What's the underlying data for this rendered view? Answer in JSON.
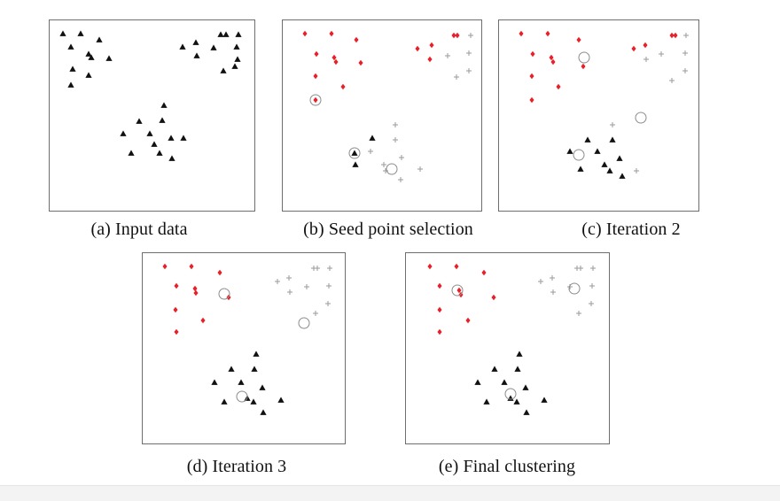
{
  "colors": {
    "cluster_red": "#e8202a",
    "cluster_black": "#111111",
    "cluster_gray": "#9a9a9a",
    "frame": "#6e6e6e"
  },
  "panels": [
    {
      "key": "a",
      "caption": "(a) Input data",
      "points": [
        {
          "m": "tri",
          "c": "k",
          "x": 15,
          "y": 15
        },
        {
          "m": "tri",
          "c": "k",
          "x": 35,
          "y": 15
        },
        {
          "m": "tri",
          "c": "k",
          "x": 56,
          "y": 22
        },
        {
          "m": "tri",
          "c": "k",
          "x": 24,
          "y": 30
        },
        {
          "m": "tri",
          "c": "k",
          "x": 44,
          "y": 38
        },
        {
          "m": "tri",
          "c": "k",
          "x": 47,
          "y": 42
        },
        {
          "m": "tri",
          "c": "k",
          "x": 67,
          "y": 43
        },
        {
          "m": "tri",
          "c": "k",
          "x": 26,
          "y": 55
        },
        {
          "m": "tri",
          "c": "k",
          "x": 44,
          "y": 62
        },
        {
          "m": "tri",
          "c": "k",
          "x": 24,
          "y": 73
        },
        {
          "m": "tri",
          "c": "k",
          "x": 150,
          "y": 30
        },
        {
          "m": "tri",
          "c": "k",
          "x": 165,
          "y": 25
        },
        {
          "m": "tri",
          "c": "k",
          "x": 193,
          "y": 16
        },
        {
          "m": "tri",
          "c": "k",
          "x": 199,
          "y": 16
        },
        {
          "m": "tri",
          "c": "k",
          "x": 185,
          "y": 31
        },
        {
          "m": "tri",
          "c": "k",
          "x": 213,
          "y": 16
        },
        {
          "m": "tri",
          "c": "k",
          "x": 166,
          "y": 40
        },
        {
          "m": "tri",
          "c": "k",
          "x": 211,
          "y": 30
        },
        {
          "m": "tri",
          "c": "k",
          "x": 212,
          "y": 44
        },
        {
          "m": "tri",
          "c": "k",
          "x": 209,
          "y": 52
        },
        {
          "m": "tri",
          "c": "k",
          "x": 196,
          "y": 57
        },
        {
          "m": "tri",
          "c": "k",
          "x": 129,
          "y": 96
        },
        {
          "m": "tri",
          "c": "k",
          "x": 101,
          "y": 114
        },
        {
          "m": "tri",
          "c": "k",
          "x": 127,
          "y": 113
        },
        {
          "m": "tri",
          "c": "k",
          "x": 83,
          "y": 128
        },
        {
          "m": "tri",
          "c": "k",
          "x": 113,
          "y": 128
        },
        {
          "m": "tri",
          "c": "k",
          "x": 137,
          "y": 133
        },
        {
          "m": "tri",
          "c": "k",
          "x": 151,
          "y": 133
        },
        {
          "m": "tri",
          "c": "k",
          "x": 92,
          "y": 150
        },
        {
          "m": "tri",
          "c": "k",
          "x": 118,
          "y": 140
        },
        {
          "m": "tri",
          "c": "k",
          "x": 124,
          "y": 150
        },
        {
          "m": "tri",
          "c": "k",
          "x": 138,
          "y": 156
        }
      ],
      "seeds": []
    },
    {
      "key": "b",
      "caption": "(b) Seed point selection",
      "points": [
        {
          "m": "dia",
          "c": "r",
          "x": 25,
          "y": 15
        },
        {
          "m": "dia",
          "c": "r",
          "x": 55,
          "y": 15
        },
        {
          "m": "dia",
          "c": "r",
          "x": 83,
          "y": 22
        },
        {
          "m": "dia",
          "c": "r",
          "x": 38,
          "y": 38
        },
        {
          "m": "dia",
          "c": "r",
          "x": 58,
          "y": 42
        },
        {
          "m": "dia",
          "c": "r",
          "x": 60,
          "y": 47
        },
        {
          "m": "dia",
          "c": "r",
          "x": 88,
          "y": 48
        },
        {
          "m": "dia",
          "c": "r",
          "x": 37,
          "y": 63
        },
        {
          "m": "dia",
          "c": "r",
          "x": 68,
          "y": 75
        },
        {
          "m": "dia",
          "c": "r",
          "x": 37,
          "y": 90
        },
        {
          "m": "dia",
          "c": "r",
          "x": 152,
          "y": 32
        },
        {
          "m": "dia",
          "c": "r",
          "x": 168,
          "y": 28
        },
        {
          "m": "dia",
          "c": "r",
          "x": 193,
          "y": 17
        },
        {
          "m": "dia",
          "c": "r",
          "x": 197,
          "y": 17
        },
        {
          "m": "dia",
          "c": "r",
          "x": 166,
          "y": 44
        },
        {
          "m": "plus",
          "c": "g",
          "x": 212,
          "y": 17
        },
        {
          "m": "plus",
          "c": "g",
          "x": 186,
          "y": 40
        },
        {
          "m": "plus",
          "c": "g",
          "x": 210,
          "y": 37
        },
        {
          "m": "plus",
          "c": "g",
          "x": 210,
          "y": 57
        },
        {
          "m": "plus",
          "c": "g",
          "x": 196,
          "y": 64
        },
        {
          "m": "plus",
          "c": "g",
          "x": 127,
          "y": 118
        },
        {
          "m": "plus",
          "c": "g",
          "x": 127,
          "y": 135
        },
        {
          "m": "plus",
          "c": "g",
          "x": 99,
          "y": 148
        },
        {
          "m": "tri",
          "c": "k",
          "x": 101,
          "y": 133
        },
        {
          "m": "tri",
          "c": "k",
          "x": 82,
          "y": 163
        },
        {
          "m": "plus",
          "c": "g",
          "x": 114,
          "y": 163
        },
        {
          "m": "plus",
          "c": "g",
          "x": 134,
          "y": 155
        },
        {
          "m": "plus",
          "c": "g",
          "x": 116,
          "y": 170
        },
        {
          "m": "plus",
          "c": "g",
          "x": 155,
          "y": 168
        },
        {
          "m": "plus",
          "c": "g",
          "x": 133,
          "y": 180
        },
        {
          "m": "tri",
          "c": "k",
          "x": 81,
          "y": 150
        }
      ],
      "seeds": [
        {
          "x": 37,
          "y": 90,
          "r": 6
        },
        {
          "x": 81,
          "y": 150,
          "r": 6
        },
        {
          "x": 123,
          "y": 168,
          "r": 6
        }
      ]
    },
    {
      "key": "c",
      "caption": "(c) Iteration 2",
      "points": [
        {
          "m": "dia",
          "c": "r",
          "x": 25,
          "y": 15
        },
        {
          "m": "dia",
          "c": "r",
          "x": 55,
          "y": 15
        },
        {
          "m": "dia",
          "c": "r",
          "x": 90,
          "y": 22
        },
        {
          "m": "dia",
          "c": "r",
          "x": 38,
          "y": 38
        },
        {
          "m": "dia",
          "c": "r",
          "x": 59,
          "y": 42
        },
        {
          "m": "dia",
          "c": "r",
          "x": 61,
          "y": 47
        },
        {
          "m": "dia",
          "c": "r",
          "x": 95,
          "y": 52
        },
        {
          "m": "dia",
          "c": "r",
          "x": 37,
          "y": 63
        },
        {
          "m": "dia",
          "c": "r",
          "x": 67,
          "y": 75
        },
        {
          "m": "dia",
          "c": "r",
          "x": 37,
          "y": 90
        },
        {
          "m": "dia",
          "c": "r",
          "x": 152,
          "y": 32
        },
        {
          "m": "dia",
          "c": "r",
          "x": 165,
          "y": 28
        },
        {
          "m": "dia",
          "c": "r",
          "x": 195,
          "y": 17
        },
        {
          "m": "dia",
          "c": "r",
          "x": 199,
          "y": 17
        },
        {
          "m": "plus",
          "c": "g",
          "x": 211,
          "y": 17
        },
        {
          "m": "plus",
          "c": "g",
          "x": 183,
          "y": 38
        },
        {
          "m": "plus",
          "c": "g",
          "x": 166,
          "y": 44
        },
        {
          "m": "plus",
          "c": "g",
          "x": 210,
          "y": 37
        },
        {
          "m": "plus",
          "c": "g",
          "x": 210,
          "y": 57
        },
        {
          "m": "plus",
          "c": "g",
          "x": 195,
          "y": 68
        },
        {
          "m": "plus",
          "c": "g",
          "x": 128,
          "y": 118
        },
        {
          "m": "tri",
          "c": "k",
          "x": 128,
          "y": 135
        },
        {
          "m": "tri",
          "c": "k",
          "x": 100,
          "y": 135
        },
        {
          "m": "tri",
          "c": "k",
          "x": 80,
          "y": 148
        },
        {
          "m": "tri",
          "c": "k",
          "x": 111,
          "y": 148
        },
        {
          "m": "tri",
          "c": "k",
          "x": 136,
          "y": 156
        },
        {
          "m": "tri",
          "c": "k",
          "x": 92,
          "y": 168
        },
        {
          "m": "tri",
          "c": "k",
          "x": 119,
          "y": 163
        },
        {
          "m": "tri",
          "c": "k",
          "x": 125,
          "y": 170
        },
        {
          "m": "tri",
          "c": "k",
          "x": 139,
          "y": 176
        },
        {
          "m": "plus",
          "c": "g",
          "x": 155,
          "y": 170
        }
      ],
      "seeds": [
        {
          "x": 96,
          "y": 42,
          "r": 6
        },
        {
          "x": 160,
          "y": 110,
          "r": 6
        },
        {
          "x": 90,
          "y": 152,
          "r": 6
        }
      ]
    },
    {
      "key": "d",
      "caption": "(d) Iteration 3",
      "points": [
        {
          "m": "dia",
          "c": "r",
          "x": 25,
          "y": 15
        },
        {
          "m": "dia",
          "c": "r",
          "x": 55,
          "y": 15
        },
        {
          "m": "dia",
          "c": "r",
          "x": 87,
          "y": 22
        },
        {
          "m": "dia",
          "c": "r",
          "x": 38,
          "y": 37
        },
        {
          "m": "dia",
          "c": "r",
          "x": 59,
          "y": 40
        },
        {
          "m": "dia",
          "c": "r",
          "x": 60,
          "y": 45
        },
        {
          "m": "dia",
          "c": "r",
          "x": 97,
          "y": 50
        },
        {
          "m": "dia",
          "c": "r",
          "x": 37,
          "y": 64
        },
        {
          "m": "dia",
          "c": "r",
          "x": 68,
          "y": 76
        },
        {
          "m": "dia",
          "c": "r",
          "x": 38,
          "y": 89
        },
        {
          "m": "plus",
          "c": "g",
          "x": 152,
          "y": 32
        },
        {
          "m": "plus",
          "c": "g",
          "x": 165,
          "y": 28
        },
        {
          "m": "plus",
          "c": "g",
          "x": 193,
          "y": 17
        },
        {
          "m": "plus",
          "c": "g",
          "x": 197,
          "y": 17
        },
        {
          "m": "plus",
          "c": "g",
          "x": 211,
          "y": 17
        },
        {
          "m": "plus",
          "c": "g",
          "x": 185,
          "y": 38
        },
        {
          "m": "plus",
          "c": "g",
          "x": 166,
          "y": 44
        },
        {
          "m": "plus",
          "c": "g",
          "x": 210,
          "y": 37
        },
        {
          "m": "plus",
          "c": "g",
          "x": 209,
          "y": 57
        },
        {
          "m": "plus",
          "c": "g",
          "x": 195,
          "y": 68
        },
        {
          "m": "tri",
          "c": "k",
          "x": 128,
          "y": 114
        },
        {
          "m": "tri",
          "c": "k",
          "x": 100,
          "y": 131
        },
        {
          "m": "tri",
          "c": "k",
          "x": 126,
          "y": 131
        },
        {
          "m": "tri",
          "c": "k",
          "x": 81,
          "y": 146
        },
        {
          "m": "tri",
          "c": "k",
          "x": 111,
          "y": 146
        },
        {
          "m": "tri",
          "c": "k",
          "x": 135,
          "y": 152
        },
        {
          "m": "tri",
          "c": "k",
          "x": 92,
          "y": 168
        },
        {
          "m": "tri",
          "c": "k",
          "x": 118,
          "y": 164
        },
        {
          "m": "tri",
          "c": "k",
          "x": 125,
          "y": 168
        },
        {
          "m": "tri",
          "c": "k",
          "x": 156,
          "y": 166
        },
        {
          "m": "tri",
          "c": "k",
          "x": 136,
          "y": 180
        }
      ],
      "seeds": [
        {
          "x": 92,
          "y": 46,
          "r": 6
        },
        {
          "x": 182,
          "y": 79,
          "r": 6
        },
        {
          "x": 112,
          "y": 162,
          "r": 6
        }
      ]
    },
    {
      "key": "e",
      "caption": "(e) Final clustering",
      "points": [
        {
          "m": "dia",
          "c": "r",
          "x": 27,
          "y": 15
        },
        {
          "m": "dia",
          "c": "r",
          "x": 57,
          "y": 15
        },
        {
          "m": "dia",
          "c": "r",
          "x": 88,
          "y": 22
        },
        {
          "m": "dia",
          "c": "r",
          "x": 38,
          "y": 37
        },
        {
          "m": "dia",
          "c": "r",
          "x": 60,
          "y": 42
        },
        {
          "m": "dia",
          "c": "r",
          "x": 62,
          "y": 47
        },
        {
          "m": "dia",
          "c": "r",
          "x": 99,
          "y": 50
        },
        {
          "m": "dia",
          "c": "r",
          "x": 38,
          "y": 64
        },
        {
          "m": "dia",
          "c": "r",
          "x": 70,
          "y": 76
        },
        {
          "m": "dia",
          "c": "r",
          "x": 38,
          "y": 89
        },
        {
          "m": "plus",
          "c": "g",
          "x": 152,
          "y": 32
        },
        {
          "m": "plus",
          "c": "g",
          "x": 165,
          "y": 28
        },
        {
          "m": "plus",
          "c": "g",
          "x": 193,
          "y": 17
        },
        {
          "m": "plus",
          "c": "g",
          "x": 197,
          "y": 17
        },
        {
          "m": "plus",
          "c": "g",
          "x": 211,
          "y": 17
        },
        {
          "m": "plus",
          "c": "g",
          "x": 185,
          "y": 38
        },
        {
          "m": "plus",
          "c": "g",
          "x": 166,
          "y": 44
        },
        {
          "m": "plus",
          "c": "g",
          "x": 210,
          "y": 37
        },
        {
          "m": "plus",
          "c": "g",
          "x": 209,
          "y": 57
        },
        {
          "m": "plus",
          "c": "g",
          "x": 195,
          "y": 68
        },
        {
          "m": "tri",
          "c": "k",
          "x": 128,
          "y": 114
        },
        {
          "m": "tri",
          "c": "k",
          "x": 100,
          "y": 131
        },
        {
          "m": "tri",
          "c": "k",
          "x": 126,
          "y": 131
        },
        {
          "m": "tri",
          "c": "k",
          "x": 81,
          "y": 146
        },
        {
          "m": "tri",
          "c": "k",
          "x": 111,
          "y": 146
        },
        {
          "m": "tri",
          "c": "k",
          "x": 135,
          "y": 152
        },
        {
          "m": "tri",
          "c": "k",
          "x": 91,
          "y": 168
        },
        {
          "m": "tri",
          "c": "k",
          "x": 118,
          "y": 164
        },
        {
          "m": "tri",
          "c": "k",
          "x": 125,
          "y": 168
        },
        {
          "m": "tri",
          "c": "k",
          "x": 156,
          "y": 166
        },
        {
          "m": "tri",
          "c": "k",
          "x": 136,
          "y": 180
        }
      ],
      "seeds": [
        {
          "x": 58,
          "y": 42,
          "r": 6
        },
        {
          "x": 190,
          "y": 40,
          "r": 6
        },
        {
          "x": 118,
          "y": 159,
          "r": 6
        }
      ]
    }
  ]
}
